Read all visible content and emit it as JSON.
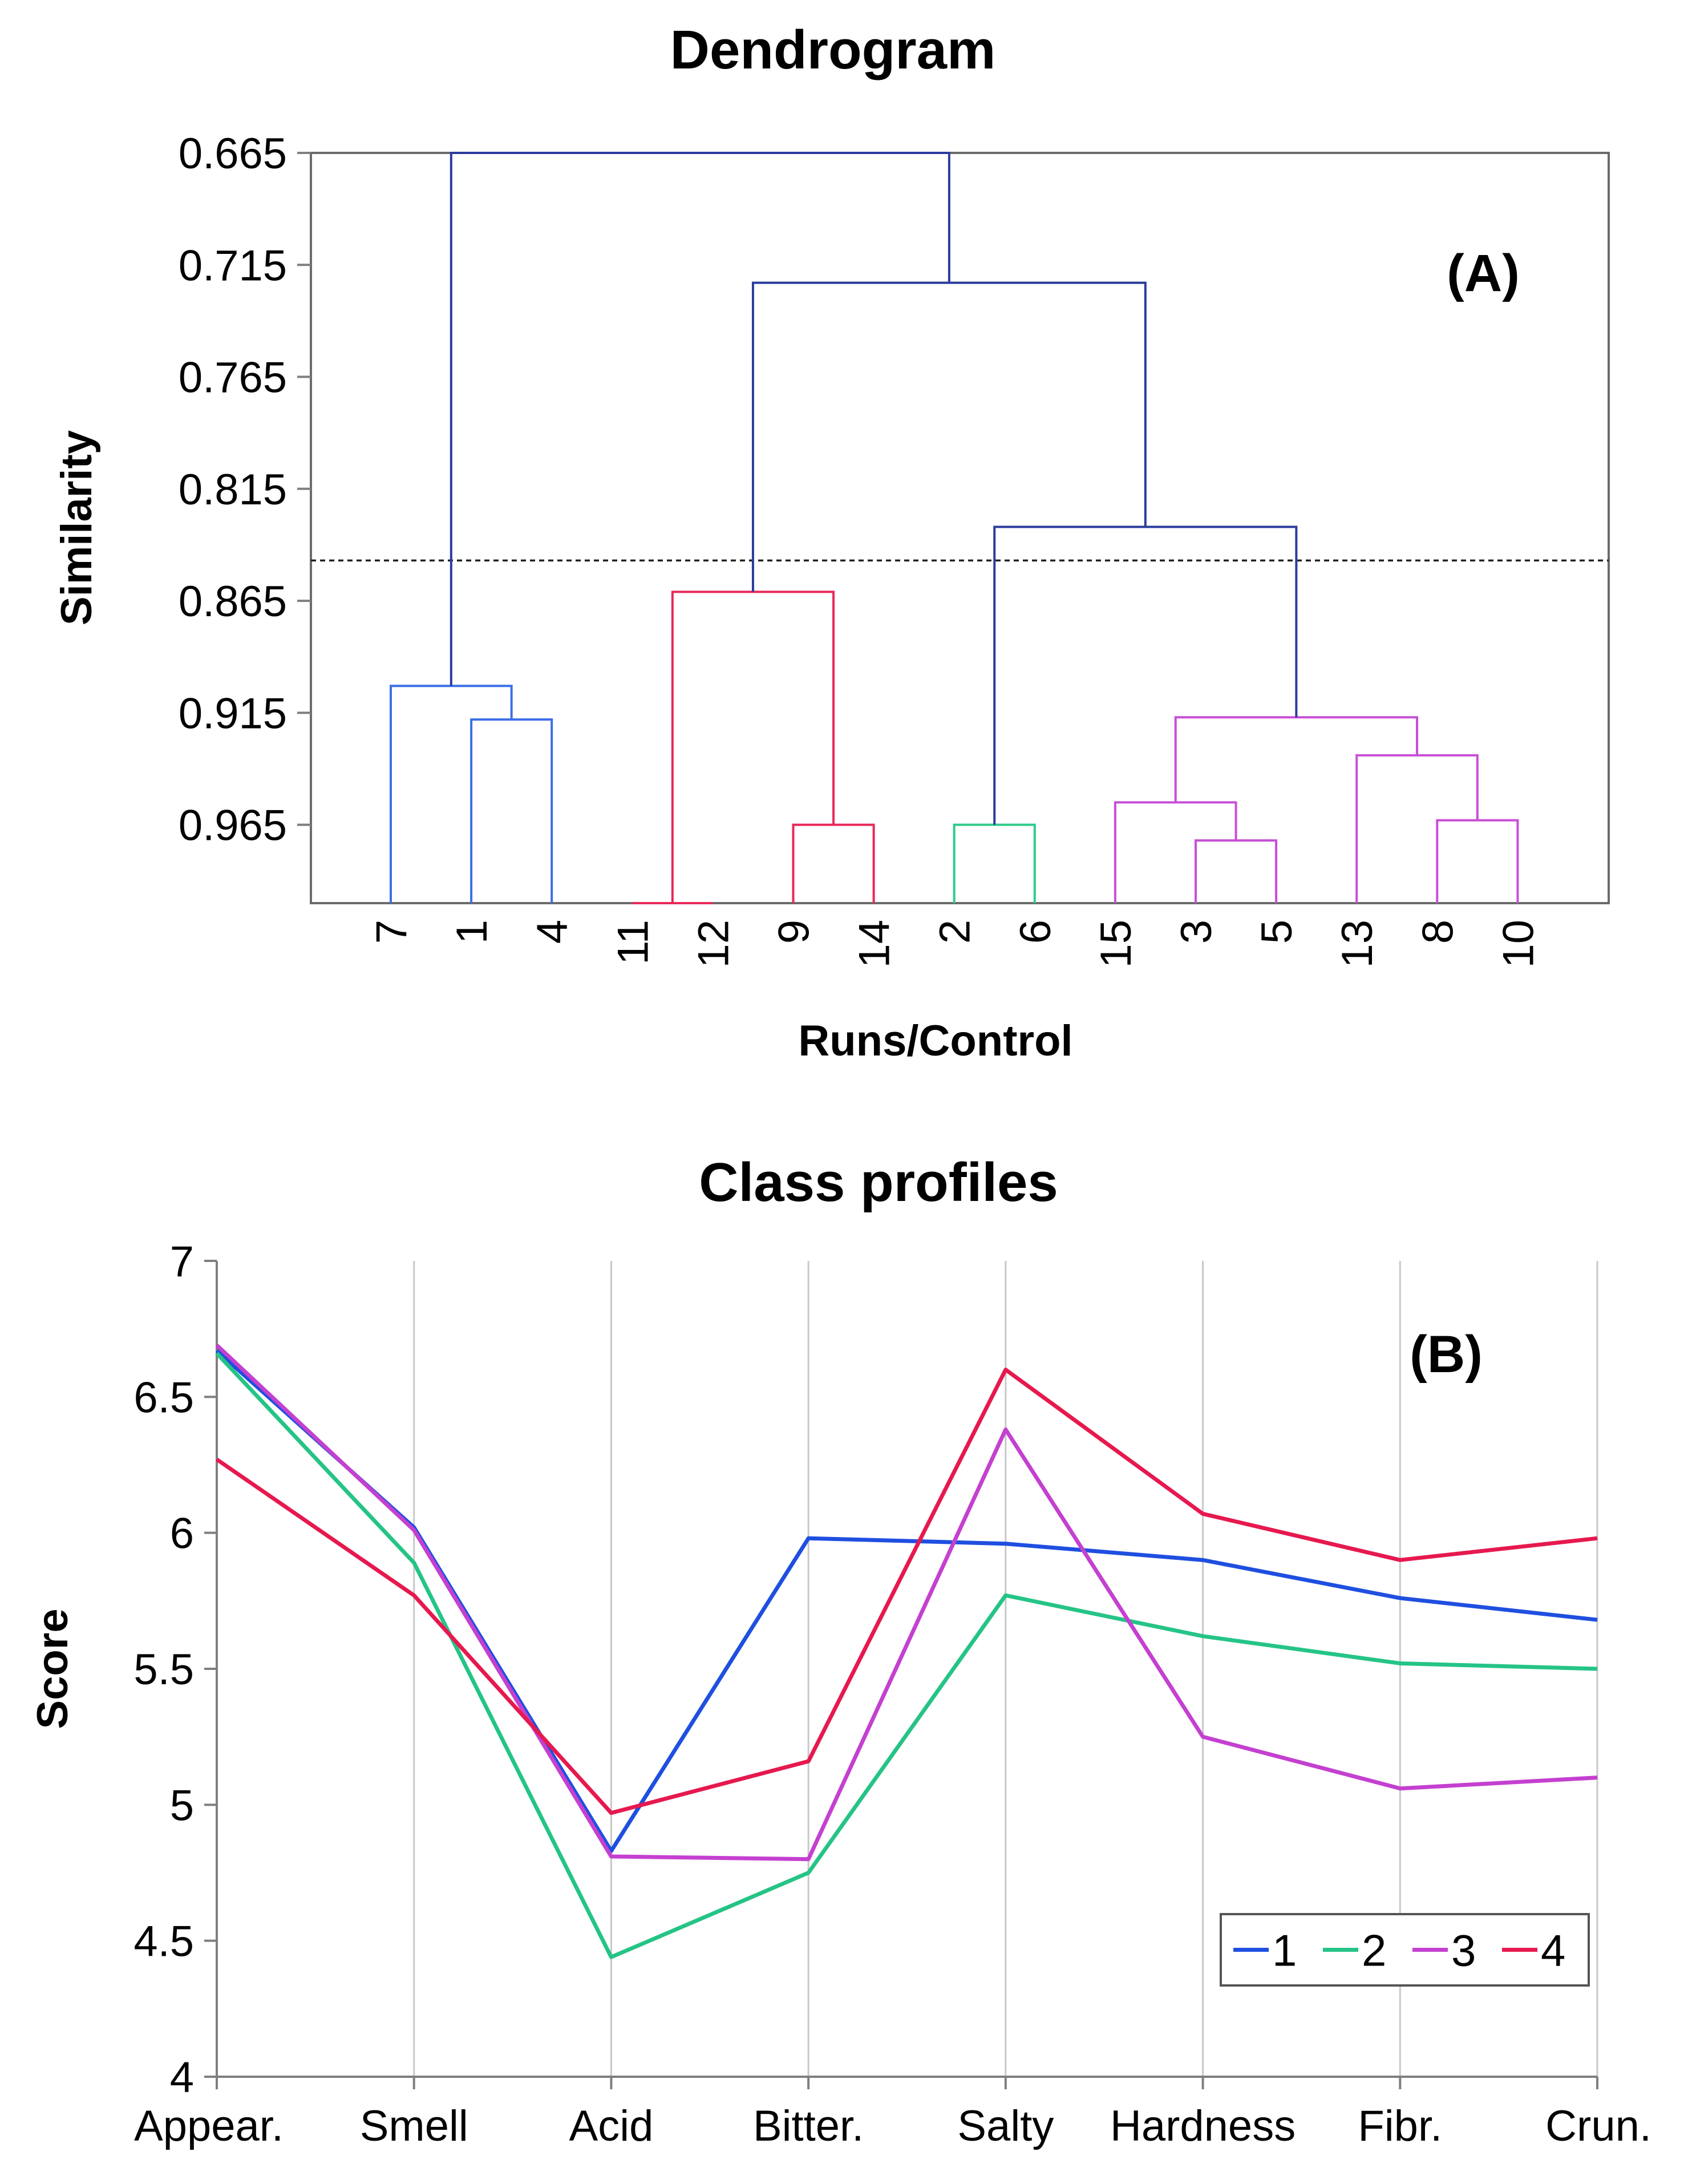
{
  "chart_data": [
    {
      "type": "dendrogram",
      "panel_label": "(A)",
      "title": "Dendrogram",
      "xlabel": "Runs/Control",
      "ylabel": "Similarity",
      "yticks": [
        "0.665",
        "0.715",
        "0.765",
        "0.815",
        "0.865",
        "0.915",
        "0.965"
      ],
      "ylim": [
        0.665,
        1.0
      ],
      "leaves": [
        "7",
        "1",
        "4",
        "11",
        "12",
        "9",
        "14",
        "2",
        "6",
        "15",
        "3",
        "5",
        "13",
        "8",
        "10"
      ],
      "cut_level": 0.847,
      "cluster_colors": {
        "1": "#3b6fe8",
        "2": "#2ecc8a",
        "3": "#c84fd6",
        "4": "#e8285a",
        "upper": "#2b3c9c"
      },
      "merges": [
        {
          "a": "11",
          "b": "12",
          "height": 1.0,
          "cluster": "4"
        },
        {
          "a": "1",
          "b": "4",
          "height": 0.918,
          "cluster": "1"
        },
        {
          "a": "7",
          "b": "1+4",
          "height": 0.903,
          "cluster": "1"
        },
        {
          "a": "9",
          "b": "14",
          "height": 0.965,
          "cluster": "4"
        },
        {
          "a": "11+12",
          "b": "9+14",
          "height": 0.861,
          "cluster": "4"
        },
        {
          "a": "2",
          "b": "6",
          "height": 0.965,
          "cluster": "2"
        },
        {
          "a": "3",
          "b": "5",
          "height": 0.972,
          "cluster": "3"
        },
        {
          "a": "15",
          "b": "3+5",
          "height": 0.955,
          "cluster": "3"
        },
        {
          "a": "8",
          "b": "10",
          "height": 0.963,
          "cluster": "3"
        },
        {
          "a": "13",
          "b": "8+10",
          "height": 0.934,
          "cluster": "3"
        },
        {
          "a": "15+3+5",
          "b": "13+8+10",
          "height": 0.917,
          "cluster": "3"
        },
        {
          "a": "2+6",
          "b": "15+3+5+13+8+10",
          "height": 0.832,
          "cluster": "upper"
        },
        {
          "a": "11+12+9+14",
          "b": "2+6+15+3+5+13+8+10",
          "height": 0.723,
          "cluster": "upper"
        },
        {
          "a": "7+1+4",
          "b": "11+12+9+14+2+6+15+3+5+13+8+10",
          "height": 0.665,
          "cluster": "upper"
        }
      ]
    },
    {
      "type": "line",
      "panel_label": "(B)",
      "title": "Class profiles",
      "xlabel": "",
      "ylabel": "Score",
      "categories": [
        "Appear.",
        "Smell",
        "Acid",
        "Bitter.",
        "Salty",
        "Hardness",
        "Fibr.",
        "Crun."
      ],
      "yticks": [
        "4",
        "4.5",
        "5",
        "5.5",
        "6",
        "6.5",
        "7"
      ],
      "ylim": [
        4,
        7
      ],
      "legend_position": "bottom-right",
      "series": [
        {
          "name": "1",
          "color": "#1f4fe0",
          "values": [
            6.67,
            6.02,
            4.83,
            5.98,
            5.96,
            5.9,
            5.76,
            5.68
          ]
        },
        {
          "name": "2",
          "color": "#25c486",
          "values": [
            6.66,
            5.89,
            4.44,
            4.75,
            5.77,
            5.62,
            5.52,
            5.5
          ]
        },
        {
          "name": "3",
          "color": "#c440d0",
          "values": [
            6.69,
            6.01,
            4.81,
            4.8,
            6.38,
            5.25,
            5.06,
            5.1
          ]
        },
        {
          "name": "4",
          "color": "#e6194f",
          "values": [
            6.27,
            5.77,
            4.97,
            5.16,
            6.6,
            6.07,
            5.9,
            5.98
          ]
        }
      ]
    }
  ]
}
